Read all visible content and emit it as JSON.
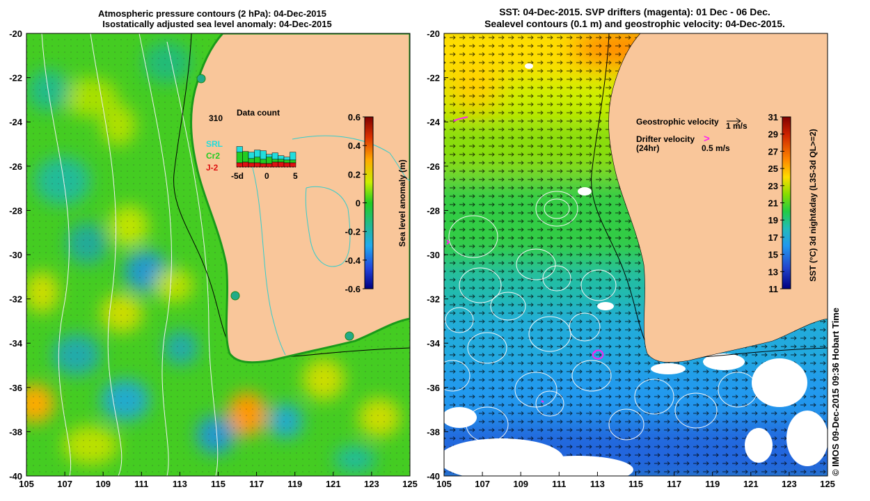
{
  "left_panel": {
    "title_line1": "Atmospheric pressure contours (2 hPa): 04-Dec-2015",
    "title_line2": "Isostatically adjusted sea level anomaly: 04-Dec-2015",
    "x_ticks": [
      "105",
      "107",
      "109",
      "111",
      "113",
      "115",
      "117",
      "119",
      "121",
      "123",
      "125"
    ],
    "y_ticks": [
      "-20",
      "-22",
      "-24",
      "-26",
      "-28",
      "-30",
      "-32",
      "-34",
      "-36",
      "-38",
      "-40"
    ],
    "colorbar": {
      "label": "Sea level anomaly (m)",
      "ticks": [
        "0.6",
        "0.4",
        "0.2",
        "0",
        "-0.2",
        "-0.4",
        "-0.6"
      ],
      "range": [
        -0.6,
        0.6
      ]
    },
    "inset": {
      "title": "Data count",
      "max_label": "310",
      "legend": [
        {
          "label": "SRL",
          "color": "#22dddd"
        },
        {
          "label": "Cr2",
          "color": "#22cc22"
        },
        {
          "label": "J-2",
          "color": "#dd1111"
        }
      ],
      "x_labels": [
        "-5d",
        "0",
        "5"
      ],
      "bars": [
        {
          "day": -5,
          "srl": 40,
          "cr2": 75,
          "j2": 30
        },
        {
          "day": -4,
          "srl": 0,
          "cr2": 75,
          "j2": 35
        },
        {
          "day": -3,
          "srl": 45,
          "cr2": 30,
          "j2": 30
        },
        {
          "day": -2,
          "srl": 50,
          "cr2": 40,
          "j2": 30
        },
        {
          "day": -1,
          "srl": 60,
          "cr2": 30,
          "j2": 25
        },
        {
          "day": 0,
          "srl": 20,
          "cr2": 45,
          "j2": 25
        },
        {
          "day": 1,
          "srl": 45,
          "cr2": 20,
          "j2": 35
        },
        {
          "day": 2,
          "srl": 25,
          "cr2": 20,
          "j2": 35
        },
        {
          "day": 3,
          "srl": 20,
          "cr2": 20,
          "j2": 30
        },
        {
          "day": 4,
          "srl": 55,
          "cr2": 20,
          "j2": 30
        }
      ]
    }
  },
  "right_panel": {
    "title_line1": "SST: 04-Dec-2015. SVP drifters (magenta): 01 Dec - 06 Dec.",
    "title_line2": "Sealevel contours (0.1 m) and geostrophic velocity: 04-Dec-2015.",
    "x_ticks": [
      "105",
      "107",
      "109",
      "111",
      "113",
      "115",
      "117",
      "119",
      "121",
      "123",
      "125"
    ],
    "y_ticks": [
      "-20",
      "-22",
      "-24",
      "-26",
      "-28",
      "-30",
      "-32",
      "-34",
      "-36",
      "-38",
      "-40"
    ],
    "colorbar": {
      "label": "SST (°C) 3d night&day (L3S-3d QL>=2)",
      "ticks": [
        "31",
        "29",
        "27",
        "25",
        "23",
        "21",
        "19",
        "17",
        "15",
        "13",
        "11"
      ],
      "range": [
        11,
        31
      ]
    },
    "legend": {
      "geo_label": "Geostrophic velocity",
      "geo_scale": "1 m/s",
      "drifter_label": "Drifter velocity",
      "drifter_sub": "(24hr)",
      "drifter_scale": "0.5 m/s",
      "drifter_symbol": ">"
    },
    "copyright": "© IMOS 09-Dec-2015 09:36 Hobart Time"
  },
  "colors": {
    "land": "#f9c69a",
    "drifter": "#ff22ee",
    "contour": "#f4f4f4",
    "river": "#33cccc"
  }
}
